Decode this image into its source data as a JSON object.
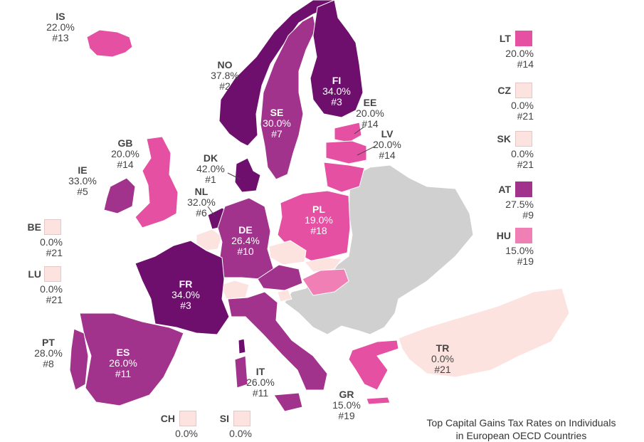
{
  "colors": {
    "non_oecd": "#d0d0d0",
    "zero": "#fde3e0",
    "low": "#f07fb5",
    "mid": "#e650a2",
    "high": "#a2338c",
    "top": "#6e0f6e",
    "border": "#ffffff"
  },
  "countries": [
    {
      "code": "IS",
      "rate": "22.0%",
      "rank": "#13"
    },
    {
      "code": "NO",
      "rate": "37.8%",
      "rank": "#2"
    },
    {
      "code": "FI",
      "rate": "34.0%",
      "rank": "#3"
    },
    {
      "code": "SE",
      "rate": "30.0%",
      "rank": "#7"
    },
    {
      "code": "EE",
      "rate": "20.0%",
      "rank": "#14"
    },
    {
      "code": "LV",
      "rate": "20.0%",
      "rank": "#14"
    },
    {
      "code": "GB",
      "rate": "20.0%",
      "rank": "#14"
    },
    {
      "code": "DK",
      "rate": "42.0%",
      "rank": "#1"
    },
    {
      "code": "IE",
      "rate": "33.0%",
      "rank": "#5"
    },
    {
      "code": "NL",
      "rate": "32.0%",
      "rank": "#6"
    },
    {
      "code": "DE",
      "rate": "26.4%",
      "rank": "#10"
    },
    {
      "code": "PL",
      "rate": "19.0%",
      "rank": "#18"
    },
    {
      "code": "FR",
      "rate": "34.0%",
      "rank": "#3"
    },
    {
      "code": "PT",
      "rate": "28.0%",
      "rank": "#8"
    },
    {
      "code": "ES",
      "rate": "26.0%",
      "rank": "#11"
    },
    {
      "code": "IT",
      "rate": "26.0%",
      "rank": "#11"
    },
    {
      "code": "GR",
      "rate": "15.0%",
      "rank": "#19"
    },
    {
      "code": "TR",
      "rate": "0.0%",
      "rank": "#21"
    }
  ],
  "legend_left": [
    {
      "code": "BE",
      "rate": "0.0%",
      "rank": "#21"
    },
    {
      "code": "LU",
      "rate": "0.0%",
      "rank": "#21"
    }
  ],
  "legend_right": [
    {
      "code": "LT",
      "rate": "20.0%",
      "rank": "#14"
    },
    {
      "code": "CZ",
      "rate": "0.0%",
      "rank": "#21"
    },
    {
      "code": "SK",
      "rate": "0.0%",
      "rank": "#21"
    },
    {
      "code": "AT",
      "rate": "27.5%",
      "rank": "#9"
    },
    {
      "code": "HU",
      "rate": "15.0%",
      "rank": "#19"
    }
  ],
  "legend_bottom": [
    {
      "code": "CH",
      "rate": "0.0%"
    },
    {
      "code": "SI",
      "rate": "0.0%"
    }
  ],
  "footer": {
    "line1": "Top Capital Gains Tax Rates on Individuals",
    "line2": "in European OECD Countries"
  }
}
